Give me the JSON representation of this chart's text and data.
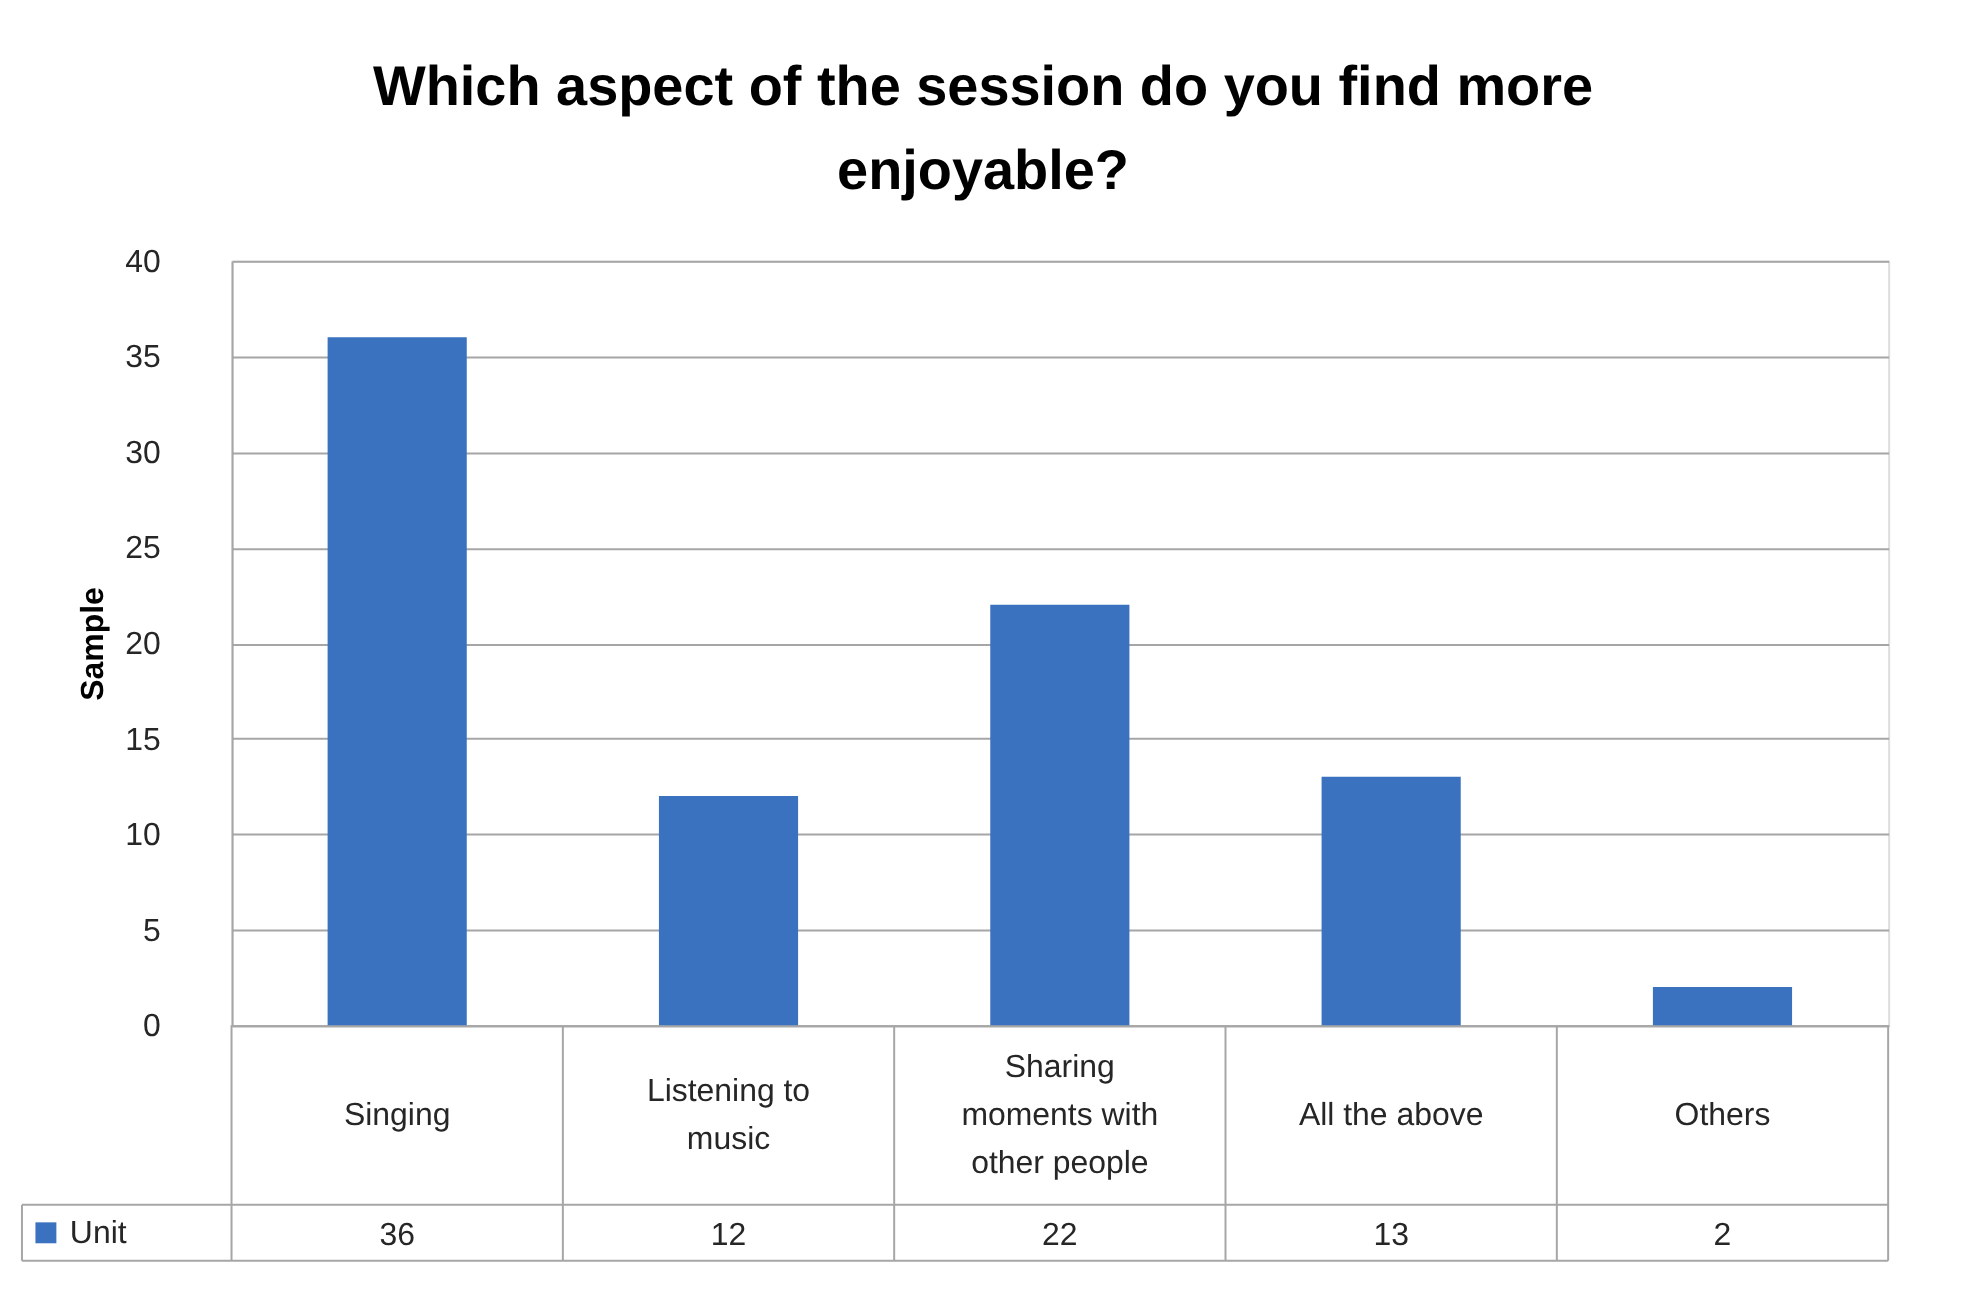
{
  "chart_data": {
    "type": "bar",
    "title": "Which aspect of the session do you find more enjoyable?",
    "ylabel": "Sample",
    "categories": [
      "Singing",
      "Listening to music",
      "Sharing moments with other people",
      "All the above",
      "Others"
    ],
    "series": [
      {
        "name": "Unit",
        "color": "#3a72c0",
        "values": [
          36,
          12,
          22,
          13,
          2
        ]
      }
    ],
    "ylim": [
      0,
      40
    ],
    "yticks": [
      0,
      5,
      10,
      15,
      20,
      25,
      30,
      35,
      40
    ],
    "grid": "y",
    "legend": "bottom left",
    "data_labels": true
  }
}
